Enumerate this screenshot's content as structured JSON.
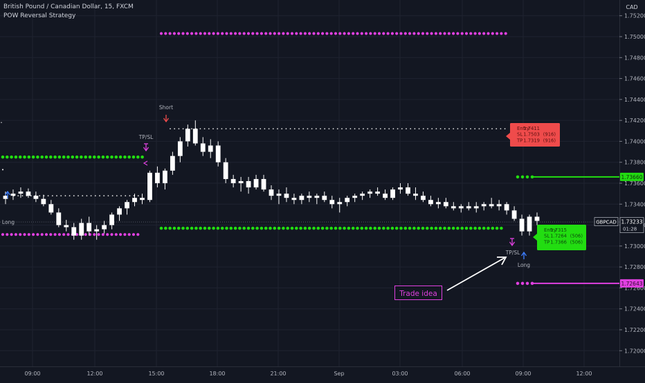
{
  "header": {
    "title": "British Pound / Canadian Dollar, 15, FXCM",
    "indicator": "POW Reversal Strategy"
  },
  "colors": {
    "background": "#131722",
    "grid": "#1f2330",
    "candle": "#ffffff",
    "green": "#22dd11",
    "magenta": "#e040e0",
    "short_red": "#ef4b4b",
    "long_blue": "#3d7eff",
    "white_dots": "#e6e6e6"
  },
  "chart_data": {
    "type": "candlestick",
    "title": "British Pound / Canadian Dollar, 15, FXCM",
    "symbol": "GBPCAD",
    "currency": "CAD",
    "ylim": [
      1.7185,
      1.7535
    ],
    "y_ticks": [
      "1.75200",
      "1.75000",
      "1.74800",
      "1.74600",
      "1.74400",
      "1.74200",
      "1.74000",
      "1.73800",
      "1.73600",
      "1.73400",
      "1.73200",
      "1.73000",
      "1.72800",
      "1.72600",
      "1.72400",
      "1.72200",
      "1.72000"
    ],
    "x_ticks": [
      "09:00",
      "12:00",
      "15:00",
      "18:00",
      "21:00",
      "Sep",
      "03:00",
      "06:00",
      "09:00",
      "12:00"
    ],
    "last_price": {
      "value": "1.73233",
      "countdown": "01:28",
      "symbol_label": "GBPCAD"
    },
    "level_labels": [
      {
        "value": "1.73660",
        "color": "green"
      },
      {
        "value": "1.72643",
        "color": "magenta"
      }
    ],
    "candles": [
      [
        1.7345,
        1.7352,
        1.734,
        1.7348
      ],
      [
        1.7348,
        1.7354,
        1.7344,
        1.735
      ],
      [
        1.735,
        1.7356,
        1.7346,
        1.7352
      ],
      [
        1.7352,
        1.7355,
        1.7346,
        1.7348
      ],
      [
        1.7348,
        1.7352,
        1.7342,
        1.7345
      ],
      [
        1.7345,
        1.7349,
        1.7338,
        1.734
      ],
      [
        1.734,
        1.7344,
        1.733,
        1.7332
      ],
      [
        1.7332,
        1.7336,
        1.7318,
        1.732
      ],
      [
        1.732,
        1.7325,
        1.7314,
        1.7318
      ],
      [
        1.7318,
        1.7322,
        1.7306,
        1.731
      ],
      [
        1.731,
        1.7326,
        1.7306,
        1.7322
      ],
      [
        1.7322,
        1.7328,
        1.731,
        1.7314
      ],
      [
        1.7314,
        1.732,
        1.7306,
        1.7316
      ],
      [
        1.7316,
        1.7324,
        1.7312,
        1.732
      ],
      [
        1.732,
        1.7332,
        1.7316,
        1.733
      ],
      [
        1.733,
        1.7338,
        1.7324,
        1.7336
      ],
      [
        1.7336,
        1.7344,
        1.733,
        1.7342
      ],
      [
        1.7342,
        1.735,
        1.7338,
        1.7346
      ],
      [
        1.7346,
        1.735,
        1.734,
        1.7344
      ],
      [
        1.7344,
        1.7372,
        1.7342,
        1.737
      ],
      [
        1.737,
        1.7376,
        1.7356,
        1.736
      ],
      [
        1.736,
        1.7374,
        1.7354,
        1.7372
      ],
      [
        1.7372,
        1.739,
        1.7368,
        1.7386
      ],
      [
        1.7386,
        1.7404,
        1.738,
        1.74
      ],
      [
        1.74,
        1.7416,
        1.7395,
        1.7412
      ],
      [
        1.7412,
        1.742,
        1.7396,
        1.7398
      ],
      [
        1.7398,
        1.7404,
        1.7386,
        1.739
      ],
      [
        1.739,
        1.7402,
        1.7384,
        1.7396
      ],
      [
        1.7396,
        1.74,
        1.7376,
        1.738
      ],
      [
        1.738,
        1.7384,
        1.736,
        1.7364
      ],
      [
        1.7364,
        1.7368,
        1.7356,
        1.736
      ],
      [
        1.736,
        1.7366,
        1.7352,
        1.7362
      ],
      [
        1.7362,
        1.7366,
        1.735,
        1.7356
      ],
      [
        1.7356,
        1.7368,
        1.7354,
        1.7364
      ],
      [
        1.7364,
        1.7368,
        1.7352,
        1.7354
      ],
      [
        1.7354,
        1.7358,
        1.7344,
        1.7348
      ],
      [
        1.7348,
        1.7354,
        1.734,
        1.735
      ],
      [
        1.735,
        1.7356,
        1.7342,
        1.7346
      ],
      [
        1.7346,
        1.735,
        1.734,
        1.7344
      ],
      [
        1.7344,
        1.735,
        1.734,
        1.7348
      ],
      [
        1.7348,
        1.7352,
        1.7342,
        1.7346
      ],
      [
        1.7346,
        1.735,
        1.734,
        1.7348
      ],
      [
        1.7348,
        1.7352,
        1.7342,
        1.7344
      ],
      [
        1.7344,
        1.7348,
        1.7336,
        1.734
      ],
      [
        1.734,
        1.7346,
        1.7332,
        1.7342
      ],
      [
        1.7342,
        1.7348,
        1.7338,
        1.7346
      ],
      [
        1.7346,
        1.735,
        1.7342,
        1.7348
      ],
      [
        1.7348,
        1.7352,
        1.7344,
        1.735
      ],
      [
        1.735,
        1.7354,
        1.7346,
        1.7352
      ],
      [
        1.7352,
        1.7356,
        1.7348,
        1.735
      ],
      [
        1.735,
        1.7354,
        1.7344,
        1.7346
      ],
      [
        1.7346,
        1.7356,
        1.7344,
        1.7354
      ],
      [
        1.7354,
        1.736,
        1.735,
        1.7356
      ],
      [
        1.7356,
        1.736,
        1.7348,
        1.735
      ],
      [
        1.735,
        1.7356,
        1.7344,
        1.7348
      ],
      [
        1.7348,
        1.7352,
        1.7342,
        1.7344
      ],
      [
        1.7344,
        1.7348,
        1.7338,
        1.734
      ],
      [
        1.734,
        1.7346,
        1.7336,
        1.7342
      ],
      [
        1.7342,
        1.7346,
        1.7336,
        1.7338
      ],
      [
        1.7338,
        1.7342,
        1.7334,
        1.7336
      ],
      [
        1.7336,
        1.734,
        1.7332,
        1.7338
      ],
      [
        1.7338,
        1.7342,
        1.7334,
        1.7336
      ],
      [
        1.7336,
        1.7342,
        1.7332,
        1.7338
      ],
      [
        1.7338,
        1.7342,
        1.7334,
        1.734
      ],
      [
        1.734,
        1.7346,
        1.7336,
        1.7338
      ],
      [
        1.7338,
        1.7344,
        1.7334,
        1.734
      ],
      [
        1.734,
        1.7342,
        1.733,
        1.7334
      ],
      [
        1.7334,
        1.7338,
        1.7324,
        1.7326
      ],
      [
        1.7326,
        1.733,
        1.731,
        1.7314
      ],
      [
        1.7314,
        1.733,
        1.731,
        1.7328
      ],
      [
        1.7328,
        1.7332,
        1.732,
        1.7324
      ]
    ],
    "levels": {
      "green_upper": 1.7385,
      "green_lower": 1.7317,
      "magenta_upper": 1.7503,
      "magenta_lower": 1.7311,
      "white_upper": 1.7412,
      "white_mid": 1.7348,
      "tp_green": 1.7366,
      "tp_magenta": 1.72643,
      "last": 1.73233
    },
    "signals": [
      {
        "label": "Short",
        "kind": "short"
      },
      {
        "label": "TP/SL",
        "kind": "tpsl"
      },
      {
        "label": "Long",
        "kind": "long"
      },
      {
        "label": "TP/SL",
        "kind": "tpsl"
      },
      {
        "label": "Long",
        "kind": "long"
      }
    ],
    "trade_boxes": [
      {
        "kind": "short",
        "lines": [
          [
            "Entry",
            "1.7411",
            ""
          ],
          [
            "SL",
            "1.7503",
            "(916)"
          ],
          [
            "TP",
            "1.7319",
            "(916)"
          ]
        ]
      },
      {
        "kind": "long",
        "lines": [
          [
            "Entry",
            "1.7315",
            ""
          ],
          [
            "SL",
            "1.7264",
            "(506)"
          ],
          [
            "TP",
            "1.7366",
            "(506)"
          ]
        ]
      }
    ],
    "annotation": "Trade idea"
  }
}
